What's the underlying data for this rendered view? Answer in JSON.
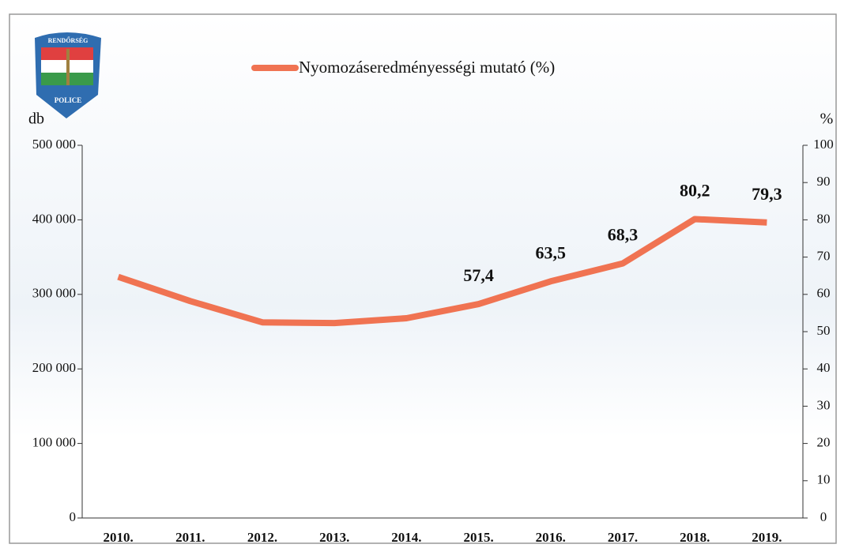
{
  "logo": {
    "top": "RENDŐRSÉG",
    "bottom": "POLICE"
  },
  "chart_data": {
    "type": "line",
    "ylabel": "db",
    "y2label": "%",
    "categories": [
      "2010.",
      "2011.",
      "2012.",
      "2013.",
      "2014.",
      "2015.",
      "2016.",
      "2017.",
      "2018.",
      "2019."
    ],
    "series": [
      {
        "name": "Nyomozáseredményességi mutató (%)",
        "color": "#f07352",
        "axis": "y2",
        "values": [
          64.7,
          58.2,
          52.5,
          52.3,
          53.6,
          57.4,
          63.5,
          68.3,
          80.2,
          79.3
        ],
        "value_labels": [
          null,
          null,
          null,
          null,
          null,
          "57,4",
          "63,5",
          "68,3",
          "80,2",
          "79,3"
        ]
      }
    ],
    "ylim": [
      0,
      500000
    ],
    "yticks": [
      {
        "value": 0,
        "label": "0"
      },
      {
        "value": 100000,
        "label": "100 000"
      },
      {
        "value": 200000,
        "label": "200 000"
      },
      {
        "value": 300000,
        "label": "300 000"
      },
      {
        "value": 400000,
        "label": "400 000"
      },
      {
        "value": 500000,
        "label": "500 000"
      }
    ],
    "y2lim": [
      0,
      100
    ],
    "y2ticks": [
      0,
      10,
      20,
      30,
      40,
      50,
      60,
      70,
      80,
      90,
      100
    ],
    "legend": "top"
  }
}
